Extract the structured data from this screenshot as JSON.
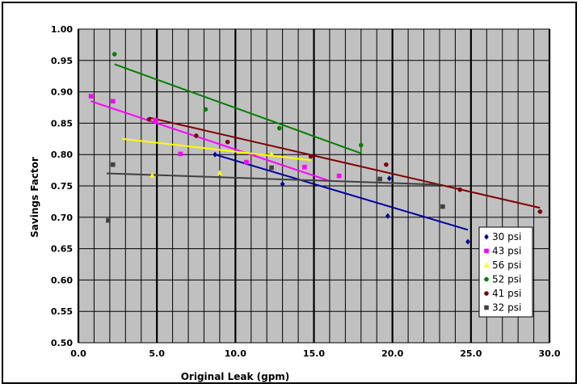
{
  "chart_data": {
    "type": "scatter",
    "title": "",
    "xlabel": "Original Leak (gpm)",
    "ylabel": "Savings Factor",
    "xlim": [
      0,
      30
    ],
    "ylim": [
      0.5,
      1.0
    ],
    "x_ticks": [
      "0.0",
      "5.0",
      "10.0",
      "15.0",
      "20.0",
      "25.0",
      "30.0"
    ],
    "y_ticks": [
      "0.50",
      "0.55",
      "0.60",
      "0.65",
      "0.70",
      "0.75",
      "0.80",
      "0.85",
      "0.90",
      "0.95",
      "1.00"
    ],
    "x_major_grid": [
      0,
      5,
      10,
      15,
      20,
      25,
      30
    ],
    "x_minor_grid_step": 1,
    "y_grid_step": 0.05,
    "plot_background": "#c0c0c0",
    "grid": true,
    "legend_position": "right",
    "series": [
      {
        "name": "30 psi",
        "color": "#0000a0",
        "marker": "diamond",
        "points": [
          [
            8.7,
            0.8
          ],
          [
            13.0,
            0.753
          ],
          [
            19.8,
            0.762
          ],
          [
            19.7,
            0.702
          ],
          [
            24.8,
            0.661
          ]
        ],
        "trend": [
          [
            8.7,
            0.8
          ],
          [
            24.8,
            0.68
          ]
        ]
      },
      {
        "name": "43 psi",
        "color": "#ff00ff",
        "marker": "square",
        "points": [
          [
            0.8,
            0.893
          ],
          [
            2.2,
            0.885
          ],
          [
            4.9,
            0.855
          ],
          [
            6.5,
            0.801
          ],
          [
            10.7,
            0.788
          ],
          [
            14.4,
            0.78
          ],
          [
            16.6,
            0.766
          ]
        ],
        "trend": [
          [
            0.8,
            0.885
          ],
          [
            16.0,
            0.758
          ]
        ]
      },
      {
        "name": "56 psi",
        "color": "#ffff00",
        "marker": "triangle",
        "points": [
          [
            4.7,
            0.767
          ],
          [
            9.0,
            0.771
          ],
          [
            12.3,
            0.801
          ]
        ],
        "trend": [
          [
            2.8,
            0.825
          ],
          [
            14.8,
            0.791
          ]
        ]
      },
      {
        "name": "52 psi",
        "color": "#008000",
        "marker": "circle",
        "points": [
          [
            2.3,
            0.96
          ],
          [
            8.1,
            0.872
          ],
          [
            12.8,
            0.842
          ],
          [
            18.0,
            0.815
          ]
        ],
        "trend": [
          [
            2.3,
            0.944
          ],
          [
            18.0,
            0.802
          ]
        ]
      },
      {
        "name": "41 psi",
        "color": "#800000",
        "marker": "circle",
        "points": [
          [
            4.5,
            0.856
          ],
          [
            7.5,
            0.83
          ],
          [
            9.5,
            0.82
          ],
          [
            14.8,
            0.797
          ],
          [
            19.6,
            0.784
          ],
          [
            24.3,
            0.744
          ],
          [
            29.4,
            0.709
          ]
        ],
        "trend": [
          [
            4.5,
            0.859
          ],
          [
            29.4,
            0.715
          ]
        ]
      },
      {
        "name": "32 psi",
        "color": "#404040",
        "marker": "square",
        "points": [
          [
            1.9,
            0.695
          ],
          [
            2.2,
            0.784
          ],
          [
            12.3,
            0.779
          ],
          [
            19.2,
            0.761
          ],
          [
            23.2,
            0.717
          ]
        ],
        "trend": [
          [
            1.8,
            0.77
          ],
          [
            23.0,
            0.752
          ]
        ]
      }
    ]
  }
}
